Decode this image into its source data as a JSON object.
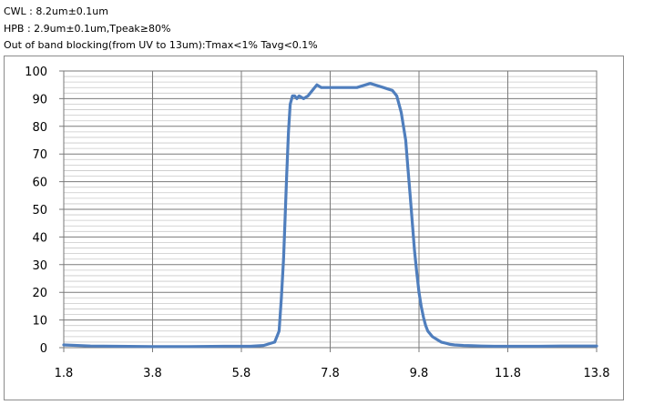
{
  "specs": [
    "CWL : 8.2um±0.1um",
    "HPB : 2.9um±0.1um,Tpeak≥80%",
    "Out of band blocking(from UV to 13um):Tmax<1% Tavg<0.1%"
  ],
  "chart_data": {
    "type": "line",
    "title": "",
    "xlabel": "",
    "ylabel": "",
    "xlim": [
      1.8,
      13.8
    ],
    "ylim": [
      0,
      100
    ],
    "x_ticks": [
      1.8,
      3.8,
      5.8,
      7.8,
      9.8,
      11.8,
      13.8
    ],
    "y_ticks": [
      0,
      10,
      20,
      30,
      40,
      50,
      60,
      70,
      80,
      90,
      100
    ],
    "minor_y_step": 2,
    "grid": true,
    "line_color": "#4f7ebd",
    "series": [
      {
        "x": [
          1.8,
          2.4,
          3.0,
          3.8,
          4.6,
          5.4,
          6.0,
          6.3,
          6.55,
          6.65,
          6.7,
          6.75,
          6.78,
          6.82,
          6.86,
          6.9,
          6.95,
          7.0,
          7.05,
          7.1,
          7.2,
          7.3,
          7.4,
          7.5,
          7.6,
          7.8,
          8.0,
          8.2,
          8.4,
          8.6,
          8.7,
          8.8,
          8.9,
          9.0,
          9.1,
          9.2,
          9.3,
          9.4,
          9.5,
          9.55,
          9.6,
          9.65,
          9.7,
          9.75,
          9.8,
          9.85,
          9.9,
          9.95,
          10.0,
          10.05,
          10.1,
          10.2,
          10.3,
          10.4,
          10.5,
          10.6,
          10.8,
          11.0,
          11.2,
          11.5,
          12.0,
          12.5,
          13.0,
          13.5,
          13.8
        ],
        "y": [
          1,
          0.6,
          0.5,
          0.4,
          0.4,
          0.5,
          0.5,
          0.8,
          2,
          6,
          18,
          32,
          45,
          62,
          78,
          88,
          91,
          91,
          90,
          91,
          90,
          91,
          93,
          95,
          94,
          94,
          94,
          94,
          94,
          95,
          95.5,
          95,
          94.5,
          94,
          93.5,
          93,
          91,
          85,
          75,
          65,
          55,
          45,
          35,
          27,
          20,
          15,
          11,
          8,
          6,
          5,
          4,
          3,
          2,
          1.6,
          1.2,
          1,
          0.8,
          0.7,
          0.6,
          0.5,
          0.5,
          0.5,
          0.6,
          0.6,
          0.6
        ]
      }
    ]
  }
}
